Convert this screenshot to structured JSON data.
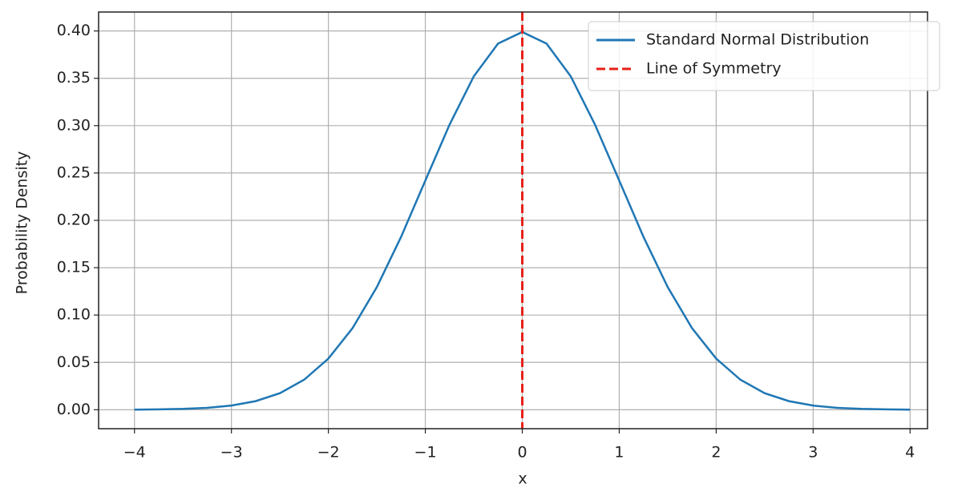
{
  "chart_data": {
    "type": "line",
    "xlabel": "x",
    "ylabel": "Probability Density",
    "x": [
      -4,
      -3.75,
      -3.5,
      -3.25,
      -3,
      -2.75,
      -2.5,
      -2.25,
      -2,
      -1.75,
      -1.5,
      -1.25,
      -1,
      -0.75,
      -0.5,
      -0.25,
      0,
      0.25,
      0.5,
      0.75,
      1,
      1.25,
      1.5,
      1.75,
      2,
      2.25,
      2.5,
      2.75,
      3,
      3.25,
      3.5,
      3.75,
      4
    ],
    "series": [
      {
        "name": "Standard Normal Distribution",
        "color": "#1f77b4",
        "values": [
          0.0001,
          0.0004,
          0.0009,
          0.002,
          0.0044,
          0.0091,
          0.0175,
          0.0317,
          0.054,
          0.0863,
          0.1295,
          0.1826,
          0.242,
          0.3011,
          0.3521,
          0.3867,
          0.3989,
          0.3867,
          0.3521,
          0.3011,
          0.242,
          0.1826,
          0.1295,
          0.0863,
          0.054,
          0.0317,
          0.0175,
          0.0091,
          0.0044,
          0.002,
          0.0009,
          0.0004,
          0.0001
        ]
      }
    ],
    "vlines": [
      {
        "name": "Line of Symmetry",
        "color": "#e8201a",
        "x": 0,
        "dashed": true
      }
    ],
    "xlim": [
      -4.37,
      4.18
    ],
    "ylim": [
      -0.02,
      0.42
    ],
    "xticks": [
      {
        "value": -4,
        "label": "−4"
      },
      {
        "value": -3,
        "label": "−3"
      },
      {
        "value": -2,
        "label": "−2"
      },
      {
        "value": -1,
        "label": "−1"
      },
      0,
      1,
      2,
      3,
      4
    ],
    "yticks": [
      {
        "value": 0,
        "label": "0.00"
      },
      {
        "value": 0.05,
        "label": "0.05"
      },
      {
        "value": 0.1,
        "label": "0.10"
      },
      {
        "value": 0.15,
        "label": "0.15"
      },
      {
        "value": 0.2,
        "label": "0.20"
      },
      {
        "value": 0.25,
        "label": "0.25"
      },
      {
        "value": 0.3,
        "label": "0.30"
      },
      {
        "value": 0.35,
        "label": "0.35"
      },
      {
        "value": 0.4,
        "label": "0.40"
      }
    ],
    "grid": true,
    "legend": "upper right"
  }
}
